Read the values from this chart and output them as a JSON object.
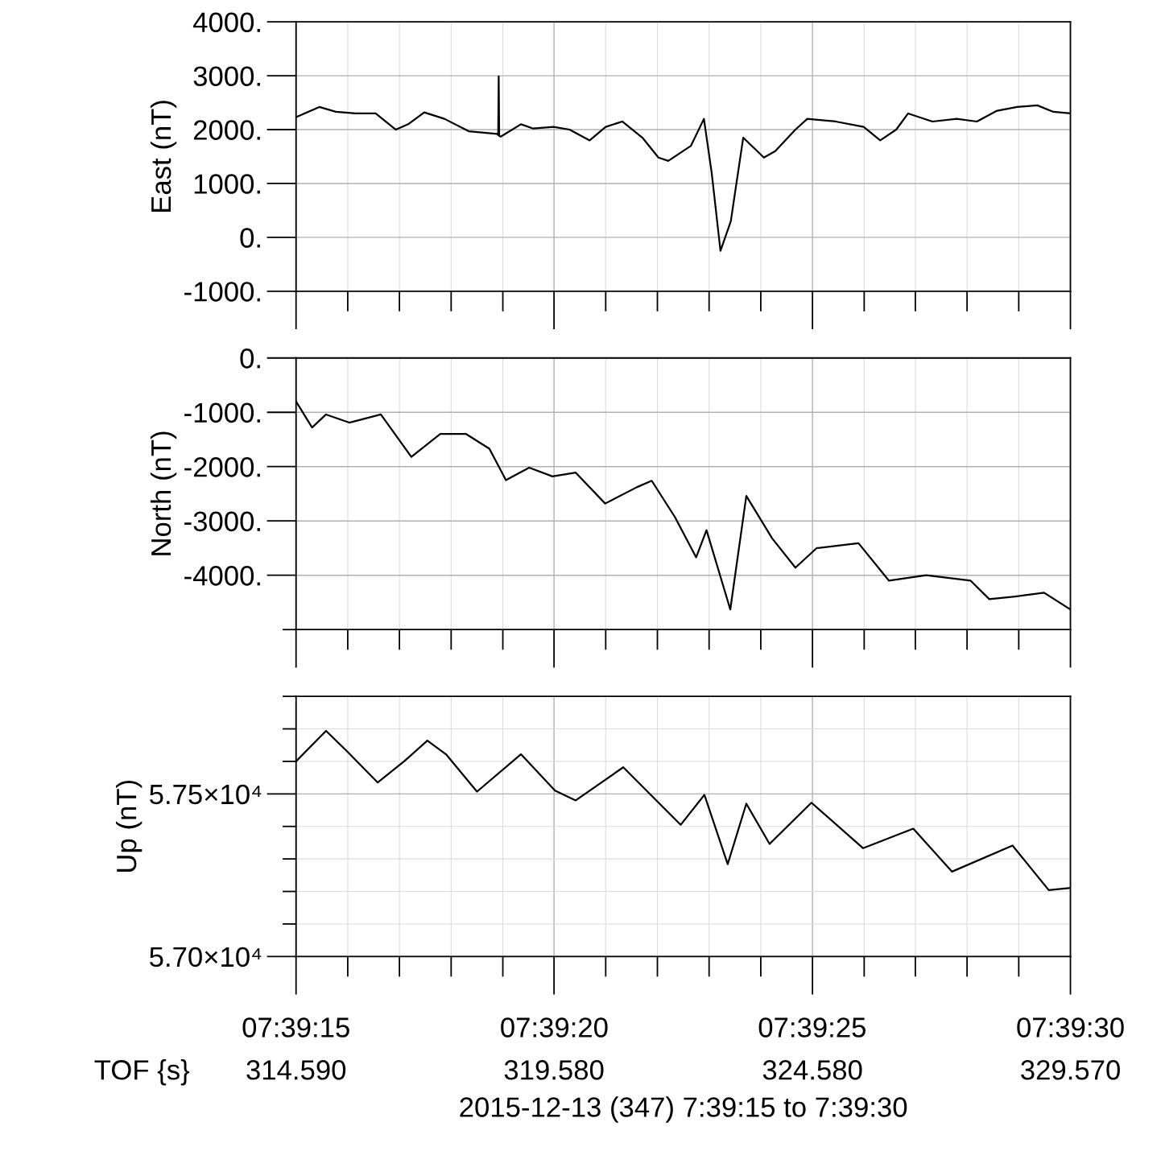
{
  "chart_data": [
    {
      "type": "line",
      "ylabel": "East (nT)",
      "xlim": [
        314.59,
        329.57
      ],
      "ylim": [
        -1000,
        4000
      ],
      "grid": true,
      "tick_labels": "y",
      "yticks": [
        {
          "value": -1000,
          "label": "-1000."
        },
        {
          "value": 0,
          "label": "0."
        },
        {
          "value": 1000,
          "label": "1000."
        },
        {
          "value": 2000,
          "label": "2000."
        },
        {
          "value": 3000,
          "label": "3000."
        },
        {
          "value": 4000,
          "label": "4000."
        }
      ],
      "series": [
        {
          "color": "#000000",
          "x": [
            314.59,
            315.04,
            315.36,
            315.74,
            316.13,
            316.52,
            316.76,
            317.07,
            317.46,
            317.93,
            318.48,
            318.5,
            318.51,
            318.52,
            318.55,
            318.94,
            319.18,
            319.57,
            319.88,
            320.27,
            320.58,
            320.9,
            321.29,
            321.6,
            321.79,
            322.23,
            322.48,
            322.63,
            322.8,
            323.0,
            323.24,
            323.64,
            323.86,
            324.25,
            324.48,
            325.03,
            325.57,
            325.89,
            326.2,
            326.43,
            326.9,
            327.37,
            327.76,
            328.15,
            328.54,
            328.93,
            329.24,
            329.57
          ],
          "values": [
            2230,
            2420,
            2330,
            2300,
            2300,
            2000,
            2100,
            2320,
            2200,
            1970,
            1920,
            1900,
            2990,
            1880,
            1870,
            2100,
            2020,
            2050,
            2000,
            1800,
            2050,
            2150,
            1850,
            1480,
            1420,
            1700,
            2200,
            1200,
            -250,
            300,
            1850,
            1480,
            1600,
            2000,
            2200,
            2150,
            2050,
            1800,
            2000,
            2300,
            2150,
            2200,
            2150,
            2350,
            2420,
            2450,
            2330,
            2300
          ]
        }
      ]
    },
    {
      "type": "line",
      "ylabel": "North (nT)",
      "xlim": [
        314.59,
        329.57
      ],
      "ylim": [
        -5000,
        0
      ],
      "grid": true,
      "tick_labels": "y",
      "yticks": [
        {
          "value": -5000,
          "label": null
        },
        {
          "value": -4000,
          "label": "-4000."
        },
        {
          "value": -3000,
          "label": "-3000."
        },
        {
          "value": -2000,
          "label": "-2000."
        },
        {
          "value": -1000,
          "label": "-1000."
        },
        {
          "value": 0,
          "label": "0."
        }
      ],
      "series": [
        {
          "color": "#000000",
          "x": [
            314.59,
            314.9,
            315.17,
            315.62,
            316.23,
            316.82,
            317.38,
            317.88,
            318.33,
            318.65,
            319.1,
            319.55,
            320.0,
            320.57,
            321.18,
            321.47,
            321.92,
            322.33,
            322.53,
            322.99,
            323.3,
            323.8,
            324.25,
            324.66,
            325.47,
            326.06,
            326.78,
            327.64,
            328.0,
            328.5,
            329.06,
            329.57
          ],
          "values": [
            -800,
            -1280,
            -1040,
            -1190,
            -1040,
            -1820,
            -1400,
            -1400,
            -1670,
            -2250,
            -2020,
            -2180,
            -2110,
            -2680,
            -2380,
            -2260,
            -2930,
            -3670,
            -3170,
            -4630,
            -2540,
            -3320,
            -3860,
            -3500,
            -3410,
            -4100,
            -4000,
            -4100,
            -4440,
            -4390,
            -4320,
            -4630
          ]
        }
      ]
    },
    {
      "type": "line",
      "ylabel": "Up (nT)",
      "xlabel": "2015-12-13 (347) 7:39:15 to 7:39:30",
      "annotations": [
        "TOF {s}"
      ],
      "xlim": [
        314.59,
        329.57
      ],
      "ylim": [
        57000,
        57800
      ],
      "grid": true,
      "xticks": [
        {
          "value": 314.59,
          "label": "314.590"
        },
        {
          "value": 315.59,
          "label": null
        },
        {
          "value": 316.59,
          "label": null
        },
        {
          "value": 317.59,
          "label": null
        },
        {
          "value": 318.59,
          "label": null
        },
        {
          "value": 319.58,
          "label": "319.580"
        },
        {
          "value": 320.58,
          "label": null
        },
        {
          "value": 321.58,
          "label": null
        },
        {
          "value": 322.58,
          "label": null
        },
        {
          "value": 323.58,
          "label": null
        },
        {
          "value": 324.58,
          "label": "324.580"
        },
        {
          "value": 325.58,
          "label": null
        },
        {
          "value": 326.57,
          "label": null
        },
        {
          "value": 327.57,
          "label": null
        },
        {
          "value": 328.57,
          "label": null
        },
        {
          "value": 329.57,
          "label": "329.570"
        }
      ],
      "x2lim": [
        7.654167,
        7.658333
      ],
      "x2ticks": [
        {
          "value": 7.654167,
          "label": "07:39:15"
        },
        {
          "value": 7.655556,
          "label": "07:39:20"
        },
        {
          "value": 7.656944,
          "label": "07:39:25"
        },
        {
          "value": 7.658333,
          "label": "07:39:30"
        }
      ],
      "yticks": [
        {
          "value": 57000,
          "label": "5.70×10⁴"
        },
        {
          "value": 57100,
          "label": null
        },
        {
          "value": 57200,
          "label": null
        },
        {
          "value": 57300,
          "label": null
        },
        {
          "value": 57400,
          "label": null
        },
        {
          "value": 57500,
          "label": "5.75×10⁴"
        },
        {
          "value": 57600,
          "label": null
        },
        {
          "value": 57700,
          "label": null
        },
        {
          "value": 57800,
          "label": null
        }
      ],
      "series": [
        {
          "color": "#000000",
          "x": [
            314.59,
            315.17,
            315.57,
            316.17,
            316.68,
            317.13,
            317.49,
            318.09,
            318.94,
            319.6,
            320.0,
            320.92,
            321.42,
            322.03,
            322.49,
            322.94,
            323.3,
            323.75,
            324.56,
            325.56,
            326.53,
            327.28,
            328.45,
            329.15,
            329.57
          ],
          "values": [
            57600,
            57694,
            57632,
            57535,
            57600,
            57664,
            57622,
            57507,
            57622,
            57510,
            57480,
            57582,
            57502,
            57405,
            57497,
            57284,
            57470,
            57346,
            57473,
            57333,
            57393,
            57261,
            57341,
            57204,
            57211
          ]
        }
      ]
    }
  ]
}
